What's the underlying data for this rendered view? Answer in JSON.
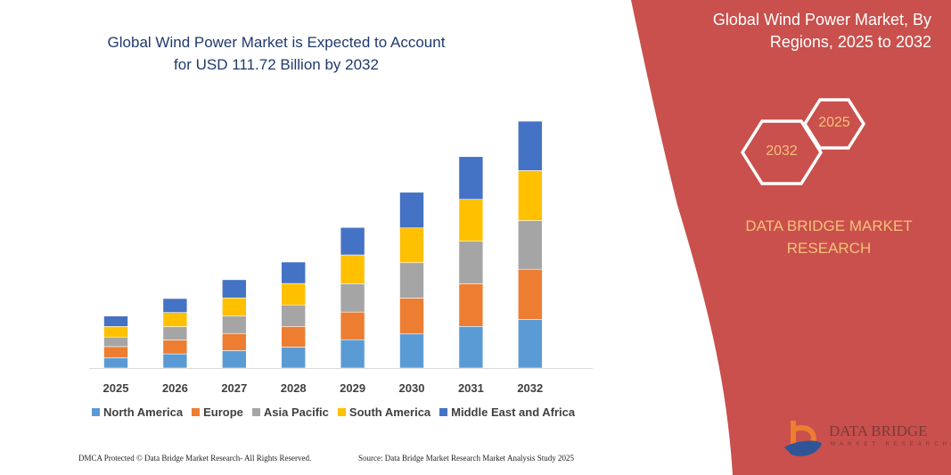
{
  "chart_data": {
    "type": "bar",
    "stacked": true,
    "title": "Global Wind Power Market is Expected to Account for USD 111.72 Billion by 2032",
    "categories": [
      "2025",
      "2026",
      "2027",
      "2028",
      "2029",
      "2030",
      "2031",
      "2032"
    ],
    "series": [
      {
        "name": "North America",
        "color": "#5b9bd5",
        "values": [
          4.7,
          6.4,
          7.9,
          9.5,
          12.8,
          15.4,
          18.8,
          22.0
        ]
      },
      {
        "name": "Europe",
        "color": "#ed7d31",
        "values": [
          5.0,
          6.3,
          7.7,
          9.3,
          12.5,
          16.2,
          19.3,
          22.6
        ]
      },
      {
        "name": "Asia Pacific",
        "color": "#a5a5a5",
        "values": [
          4.3,
          6.0,
          7.9,
          9.7,
          12.8,
          16.0,
          19.2,
          22.0
        ]
      },
      {
        "name": "South America",
        "color": "#ffc000",
        "values": [
          4.8,
          6.4,
          8.2,
          9.7,
          13.0,
          15.7,
          18.9,
          22.6
        ]
      },
      {
        "name": "Middle East and Africa",
        "color": "#4472c4",
        "values": [
          4.7,
          6.3,
          8.2,
          9.7,
          12.4,
          16.1,
          19.3,
          22.3
        ]
      }
    ],
    "ylim": [
      0,
      115
    ],
    "y_axis_shown": false,
    "grid": false,
    "legend_position": "bottom"
  },
  "side_panel": {
    "title": "Global Wind Power Market, By Regions, 2025 to 2032",
    "hex_start": "2025",
    "hex_end": "2032",
    "brand": "DATA BRIDGE MARKET RESEARCH",
    "color": "#c9504c"
  },
  "footer": {
    "left": "DMCA Protected © Data Bridge Market Research- All Rights Reserved.",
    "right": "Source: Data Bridge Market Research  Market Analysis Study 2025"
  },
  "logo": {
    "name": "DATA BRIDGE",
    "sub": "MARKET RESEARCH"
  }
}
